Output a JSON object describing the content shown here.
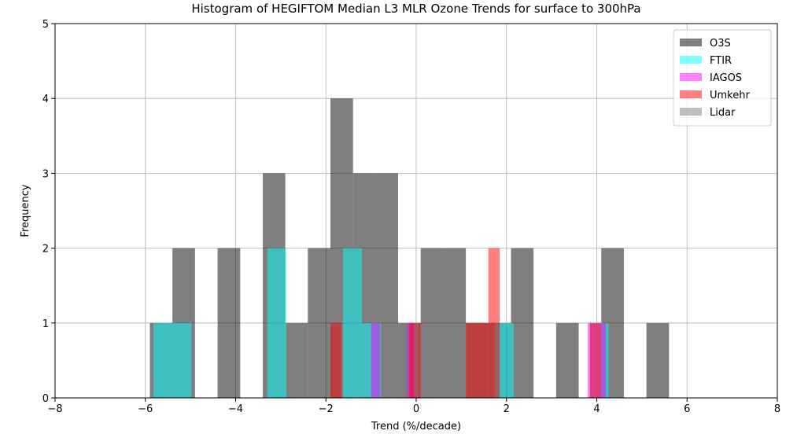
{
  "chart_data": {
    "type": "histogram",
    "title": "Histogram of HEGIFTOM Median L3 MLR Ozone Trends for surface to 300hPa",
    "x_label": "Trend (%/decade)",
    "y_label": "Frequency",
    "xlim": [
      -8,
      8
    ],
    "ylim": [
      0,
      5
    ],
    "xticks": [
      {
        "value": -8,
        "label": "−8"
      },
      {
        "value": -6,
        "label": "−6"
      },
      {
        "value": -4,
        "label": "−4"
      },
      {
        "value": -2,
        "label": "−2"
      },
      0,
      2,
      4,
      6,
      8
    ],
    "yticks": [
      0,
      1,
      2,
      3,
      4,
      5
    ],
    "grid": true,
    "legend": "upper right",
    "alpha": 0.5,
    "series": [
      {
        "name": "O3S",
        "color": "#000000",
        "bins": [
          -5.9,
          -5.4,
          -4.9,
          -4.4,
          -3.9,
          -3.4,
          -2.9,
          -2.4,
          -1.9,
          -1.4,
          -0.9,
          -0.4,
          0.1,
          0.6,
          1.1,
          1.6,
          2.1,
          2.6,
          3.1,
          3.6,
          4.1,
          4.6,
          5.1,
          5.6
        ],
        "values": [
          1,
          2,
          0,
          2,
          0,
          3,
          1,
          2,
          4,
          3,
          3,
          1,
          2,
          2,
          1,
          1,
          2,
          0,
          1,
          0,
          2,
          0,
          1
        ]
      },
      {
        "name": "FTIR",
        "color": "#00ffff",
        "bins": [
          -5.82,
          -5.4,
          -4.98,
          -4.56,
          -4.14,
          -3.72,
          -3.3,
          -2.88,
          -2.46,
          -2.04,
          -1.62,
          -1.2,
          -0.78,
          -0.36,
          0.06,
          0.48,
          0.9,
          1.32,
          1.74,
          2.16,
          2.58,
          3.0,
          3.42,
          3.84,
          4.26
        ],
        "values": [
          1,
          1,
          0,
          0,
          0,
          0,
          2,
          0,
          0,
          0,
          2,
          1,
          0,
          0,
          0,
          0,
          0,
          0,
          1,
          0,
          0,
          0,
          0,
          1
        ]
      },
      {
        "name": "IAGOS",
        "color": "#ff00ff",
        "bins": [
          -1.0,
          -0.8,
          -0.6,
          -0.4,
          -0.2,
          0.0,
          0.2,
          0.4,
          0.6,
          0.8,
          1.0,
          1.2,
          1.4,
          1.6,
          1.8,
          2.0,
          2.2,
          2.4,
          2.6,
          2.8,
          3.0,
          3.2,
          3.4,
          3.6,
          3.8,
          4.0,
          4.2
        ],
        "values": [
          1,
          0,
          0,
          0,
          1,
          0,
          0,
          0,
          0,
          0,
          0,
          0,
          0,
          0,
          0,
          0,
          0,
          0,
          0,
          0,
          0,
          0,
          0,
          0,
          1,
          1
        ]
      },
      {
        "name": "Umkehr",
        "color": "#ff0000",
        "bins": [
          -1.9,
          -1.65,
          -1.4,
          -1.15,
          -0.9,
          -0.65,
          -0.4,
          -0.15,
          0.1,
          0.35,
          0.6,
          0.85,
          1.1,
          1.35,
          1.6,
          1.85,
          2.1,
          2.35,
          2.6,
          2.85,
          3.1,
          3.35,
          3.6,
          3.85,
          4.1
        ],
        "values": [
          1,
          0,
          0,
          0,
          0,
          0,
          0,
          1,
          0,
          0,
          0,
          0,
          1,
          1,
          2,
          0,
          0,
          0,
          0,
          0,
          0,
          0,
          0,
          1
        ]
      },
      {
        "name": "Lidar",
        "color": "#808080",
        "bins": [
          -0.05,
          0.05
        ],
        "values": [
          1
        ]
      }
    ]
  }
}
